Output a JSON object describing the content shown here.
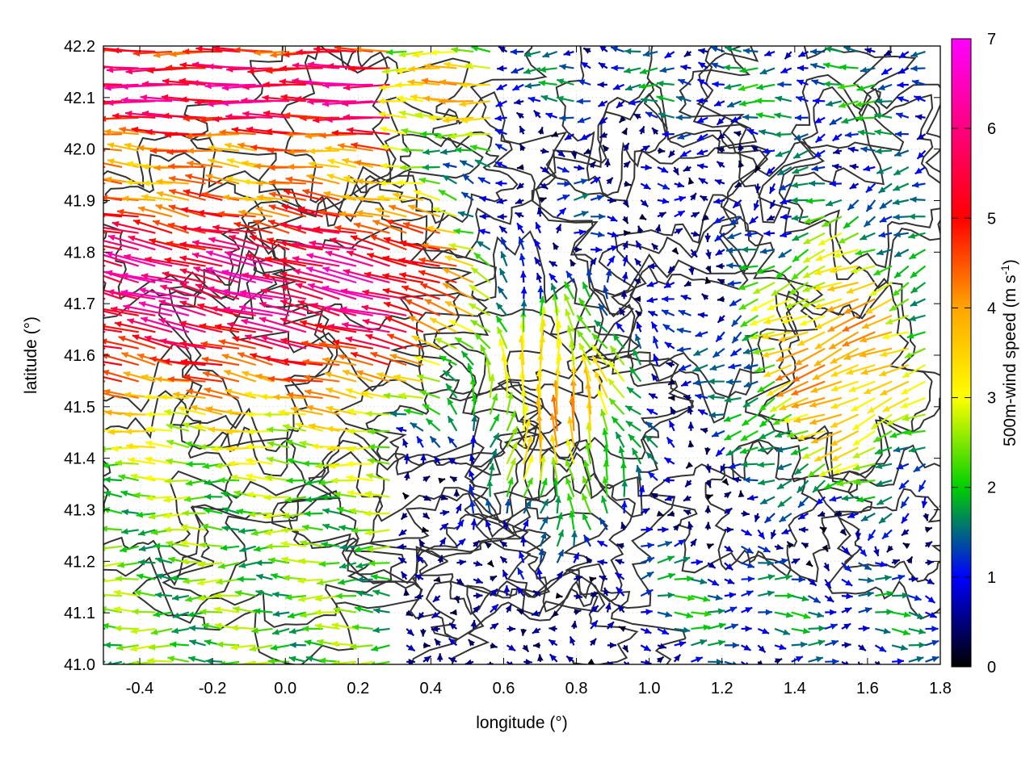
{
  "chart_data": {
    "type": "vector-field",
    "xlabel": "longitude (°)",
    "ylabel": "latitude (°)",
    "xlim": [
      -0.5,
      1.8
    ],
    "ylim": [
      41.0,
      42.2
    ],
    "xticks": [
      "-0.4",
      "-0.2",
      "0.0",
      "0.2",
      "0.4",
      "0.6",
      "0.8",
      "1.0",
      "1.2",
      "1.4",
      "1.6",
      "1.8"
    ],
    "xtick_values": [
      -0.4,
      -0.2,
      0.0,
      0.2,
      0.4,
      0.6,
      0.8,
      1.0,
      1.2,
      1.4,
      1.6,
      1.8
    ],
    "yticks": [
      "41.0",
      "41.1",
      "41.2",
      "41.3",
      "41.4",
      "41.5",
      "41.6",
      "41.7",
      "41.8",
      "41.9",
      "42.0",
      "42.1",
      "42.2"
    ],
    "ytick_values": [
      41.0,
      41.1,
      41.2,
      41.3,
      41.4,
      41.5,
      41.6,
      41.7,
      41.8,
      41.9,
      42.0,
      42.1,
      42.2
    ],
    "colorbar": {
      "label": "500m-wind speed (m s-1)",
      "range": [
        0,
        7
      ],
      "ticks": [
        "0",
        "1",
        "2",
        "3",
        "4",
        "5",
        "6",
        "7"
      ],
      "tick_values": [
        0,
        1,
        2,
        3,
        4,
        5,
        6,
        7
      ],
      "colors": [
        "#000000",
        "#0000ff",
        "#00d000",
        "#ffff00",
        "#ffa500",
        "#ff0000",
        "#ff00ff"
      ]
    },
    "contours": "terrain elevation contours",
    "grid": true,
    "vectors_note": "wind vectors on a regular lon/lat grid, color = speed"
  }
}
